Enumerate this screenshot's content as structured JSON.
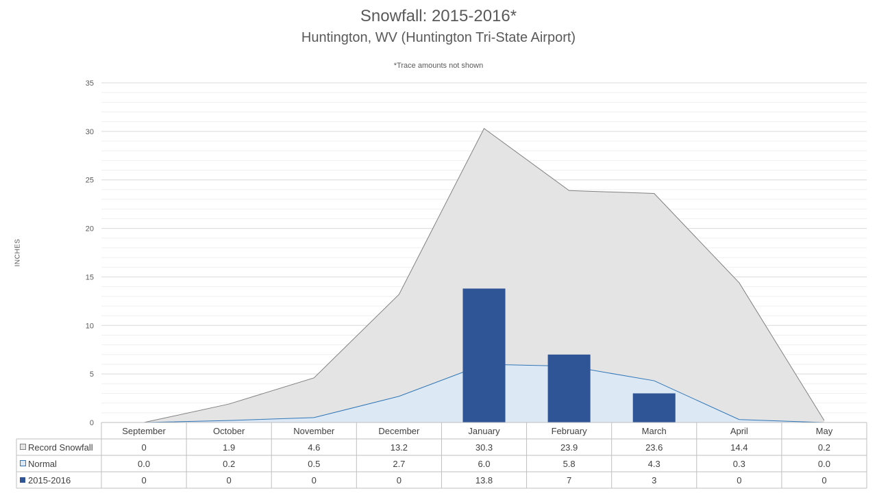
{
  "chart_data": {
    "type": "area",
    "title": "Snowfall: 2015-2016*",
    "subtitle": "Huntington, WV (Huntington Tri-State Airport)",
    "note": "*Trace amounts not shown",
    "ylabel": "INCHES",
    "ylim": [
      0,
      35
    ],
    "yticks": [
      0,
      5,
      10,
      15,
      20,
      25,
      30,
      35
    ],
    "grid": true,
    "legend": "data-table",
    "categories": [
      "September",
      "October",
      "November",
      "December",
      "January",
      "February",
      "March",
      "April",
      "May"
    ],
    "series": [
      {
        "name": "Record Snowfall",
        "kind": "area",
        "color": "#e4e4e4",
        "line_color": "#808080",
        "values": [
          0,
          1.9,
          4.6,
          13.2,
          30.3,
          23.9,
          23.6,
          14.4,
          0.2
        ],
        "table_values": [
          "0",
          "1.9",
          "4.6",
          "13.2",
          "30.3",
          "23.9",
          "23.6",
          "14.4",
          "0.2"
        ]
      },
      {
        "name": "Normal",
        "kind": "area",
        "color": "#dde8f5",
        "line_color": "#2e75b6",
        "values": [
          0.0,
          0.2,
          0.5,
          2.7,
          6.0,
          5.8,
          4.3,
          0.3,
          0.0
        ],
        "table_values": [
          "0.0",
          "0.2",
          "0.5",
          "2.7",
          "6.0",
          "5.8",
          "4.3",
          "0.3",
          "0.0"
        ]
      },
      {
        "name": "2015-2016",
        "kind": "bar",
        "color": "#2f5597",
        "values": [
          0,
          0,
          0,
          0,
          13.8,
          7,
          3,
          0,
          0
        ],
        "table_values": [
          "0",
          "0",
          "0",
          "0",
          "13.8",
          "7",
          "3",
          "0",
          "0"
        ]
      }
    ]
  }
}
